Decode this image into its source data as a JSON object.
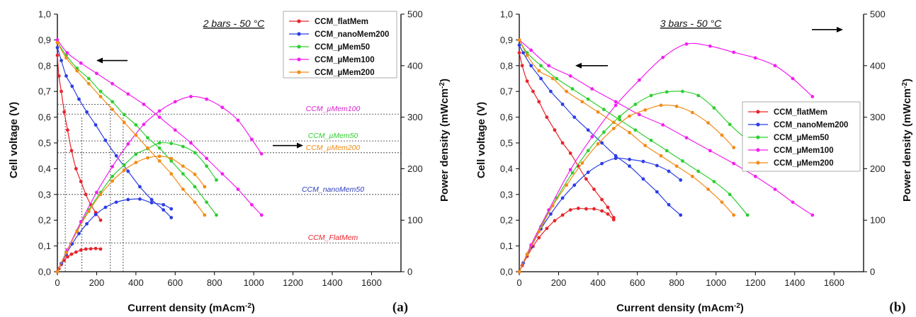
{
  "chart_data": [
    {
      "type": "line",
      "condition": "2 bars - 50 °C",
      "panel_label": "(a)",
      "xlabel": "Current density (mAcm",
      "xlabel_sup": "-2",
      "xlabel_close": ")",
      "ylabel_left": "Cell voltage (V)",
      "ylabel_right": "Power density (mWcm",
      "ylabel_right_sup": "-2",
      "ylabel_right_close": ")",
      "xlim": [
        0,
        1750
      ],
      "ylim_left": [
        0,
        1.0
      ],
      "ylim_right": [
        0,
        500
      ],
      "x_ticks": [
        0,
        200,
        400,
        600,
        800,
        1000,
        1200,
        1400,
        1600
      ],
      "y_left_ticks": [
        "0,0",
        "0,1",
        "0,2",
        "0,3",
        "0,4",
        "0,5",
        "0,6",
        "0,7",
        "0,8",
        "0,9",
        "1,0"
      ],
      "y_right_ticks": [
        0,
        100,
        200,
        300,
        400,
        500
      ],
      "legend_position": "top-right",
      "arrows": [
        {
          "direction": "left",
          "x": 230,
          "y": 0.82
        },
        {
          "direction": "right",
          "x": 1450,
          "y": 0.49
        }
      ],
      "series": [
        {
          "name": "CCM_flatMem",
          "color": "#e8242a",
          "polarization": {
            "x": [
              0,
              8,
              20,
              35,
              52,
              72,
              95,
              120,
              145,
              170,
              195,
              220
            ],
            "y": [
              0.84,
              0.76,
              0.7,
              0.62,
              0.55,
              0.47,
              0.4,
              0.35,
              0.3,
              0.26,
              0.23,
              0.2
            ]
          },
          "power": {
            "x": [
              0,
              8,
              20,
              35,
              52,
              72,
              95,
              120,
              145,
              170,
              195,
              220
            ],
            "y": [
              0,
              6,
              14,
              22,
              29,
              34,
              38,
              42,
              44,
              44.5,
              45,
              44
            ]
          }
        },
        {
          "name": "CCM_nanoMem200",
          "color": "#2b3de6",
          "polarization": {
            "x": [
              0,
              20,
              45,
              75,
              110,
              150,
              195,
              245,
              300,
              360,
              420,
              480,
              540,
              580
            ],
            "y": [
              0.87,
              0.82,
              0.76,
              0.72,
              0.67,
              0.62,
              0.57,
              0.51,
              0.45,
              0.39,
              0.33,
              0.28,
              0.24,
              0.21
            ]
          },
          "power": {
            "x": [
              0,
              20,
              45,
              75,
              110,
              150,
              195,
              245,
              300,
              360,
              420,
              480,
              540,
              580
            ],
            "y": [
              0,
              16,
              34,
              54,
              74,
              93,
              111,
              125,
              135,
              140,
              141,
              134,
              130,
              122
            ]
          }
        },
        {
          "name": "CCM_µMem50",
          "color": "#2fcf2f",
          "polarization": {
            "x": [
              0,
              45,
              100,
              160,
              220,
              280,
              340,
              400,
              460,
              520,
              580,
              640,
              700,
              760,
              810
            ],
            "y": [
              0.89,
              0.84,
              0.79,
              0.75,
              0.7,
              0.66,
              0.61,
              0.57,
              0.52,
              0.48,
              0.43,
              0.38,
              0.33,
              0.27,
              0.22
            ]
          },
          "power": {
            "x": [
              0,
              45,
              100,
              160,
              220,
              280,
              340,
              400,
              460,
              520,
              580,
              640,
              700,
              760,
              810
            ],
            "y": [
              0,
              38,
              79,
              120,
              154,
              185,
              207,
              228,
              239,
              250,
              249,
              243,
              231,
              205,
              178
            ]
          }
        },
        {
          "name": "CCM_µMem100",
          "color": "#f31ff0",
          "polarization": {
            "x": [
              0,
              50,
              120,
              200,
              280,
              360,
              440,
              520,
              600,
              680,
              760,
              840,
              920,
              990,
              1040
            ],
            "y": [
              0.9,
              0.85,
              0.81,
              0.77,
              0.73,
              0.69,
              0.65,
              0.6,
              0.55,
              0.5,
              0.44,
              0.38,
              0.32,
              0.26,
              0.22
            ]
          },
          "power": {
            "x": [
              0,
              50,
              120,
              200,
              280,
              360,
              440,
              520,
              600,
              680,
              760,
              840,
              920,
              990,
              1040
            ],
            "y": [
              0,
              42,
              97,
              154,
              204,
              248,
              286,
              312,
              330,
              340,
              335,
              319,
              294,
              257,
              229
            ]
          }
        },
        {
          "name": "CCM_µMem200",
          "color": "#f38b18",
          "polarization": {
            "x": [
              0,
              45,
              100,
              160,
              220,
              280,
              340,
              400,
              460,
              520,
              580,
              640,
              700,
              750
            ],
            "y": [
              0.89,
              0.83,
              0.78,
              0.73,
              0.68,
              0.63,
              0.58,
              0.53,
              0.48,
              0.43,
              0.38,
              0.32,
              0.27,
              0.22
            ]
          },
          "power": {
            "x": [
              0,
              45,
              100,
              160,
              220,
              280,
              340,
              400,
              460,
              520,
              580,
              640,
              700,
              750
            ],
            "y": [
              0,
              37,
              78,
              117,
              150,
              176,
              197,
              212,
              221,
              224,
              220,
              205,
              189,
              165
            ]
          }
        }
      ],
      "guide_lines": [
        {
          "type": "h",
          "y": 0.65,
          "x_from": 0,
          "x_to": 270
        },
        {
          "type": "v",
          "x": 40,
          "y_from": 0,
          "y_to": 0.65
        },
        {
          "type": "v",
          "x": 125,
          "y_from": 0,
          "y_to": 0.6
        },
        {
          "type": "v",
          "x": 270,
          "y_from": 0,
          "y_to": 0.65
        },
        {
          "type": "v",
          "x": 335,
          "y_from": 0,
          "y_to": 0.6
        }
      ],
      "power_reference_lines": [
        {
          "label": "CCM_µMem100",
          "power": 306,
          "color": "#d81fd0"
        },
        {
          "label": "CCM_µMem50",
          "power": 254,
          "color": "#2fcf2f"
        },
        {
          "label": "CCM_µMem200",
          "power": 231,
          "color": "#f08a18"
        },
        {
          "label": "CCM_nanoMem50",
          "power": 150,
          "color": "#2b3db8"
        },
        {
          "label": "CCM_FlatMem",
          "power": 56,
          "color": "#e8242a"
        }
      ]
    },
    {
      "type": "line",
      "condition": "3 bars - 50 °C",
      "panel_label": "(b)",
      "xlabel": "Current density (mAcm",
      "xlabel_sup": "-2",
      "xlabel_close": ")",
      "ylabel_left": "Cell voltage (V)",
      "ylabel_right": "Power density (mWcm",
      "ylabel_right_sup": "-2",
      "ylabel_right_close": ")",
      "xlim": [
        0,
        1750
      ],
      "ylim_left": [
        0,
        1.0
      ],
      "ylim_right": [
        0,
        500
      ],
      "x_ticks": [
        0,
        200,
        400,
        600,
        800,
        1000,
        1200,
        1400,
        1600
      ],
      "y_left_ticks": [
        "0,0",
        "0,1",
        "0,2",
        "0,3",
        "0,4",
        "0,5",
        "0,6",
        "0,7",
        "0,8",
        "0,9",
        "1,0"
      ],
      "y_right_ticks": [
        0,
        100,
        200,
        300,
        400,
        500
      ],
      "legend_position": "center-right",
      "arrows": [
        {
          "direction": "left",
          "x": 480,
          "y": 0.8
        },
        {
          "direction": "right",
          "x": 1600,
          "y": 0.94
        }
      ],
      "series": [
        {
          "name": "CCM_flatMem",
          "color": "#e8242a",
          "polarization": {
            "x": [
              0,
              15,
              40,
              70,
              100,
              140,
              180,
              220,
              260,
              300,
              340,
              380,
              420,
              450,
              480
            ],
            "y": [
              0.85,
              0.8,
              0.74,
              0.7,
              0.66,
              0.6,
              0.55,
              0.5,
              0.46,
              0.41,
              0.36,
              0.32,
              0.28,
              0.25,
              0.21
            ]
          },
          "power": {
            "x": [
              0,
              15,
              40,
              70,
              100,
              140,
              180,
              220,
              260,
              300,
              340,
              380,
              420,
              450,
              480
            ],
            "y": [
              0,
              12,
              30,
              49,
              66,
              84,
              99,
              110,
              120,
              123,
              122,
              122,
              118,
              112,
              101
            ]
          }
        },
        {
          "name": "CCM_nanoMem200",
          "color": "#2b3de6",
          "polarization": {
            "x": [
              0,
              20,
              60,
              110,
              160,
              220,
              280,
              350,
              420,
              490,
              560,
              630,
              700,
              760,
              820
            ],
            "y": [
              0.88,
              0.85,
              0.8,
              0.75,
              0.7,
              0.65,
              0.6,
              0.55,
              0.5,
              0.45,
              0.41,
              0.36,
              0.31,
              0.26,
              0.22
            ]
          },
          "power": {
            "x": [
              0,
              20,
              60,
              110,
              160,
              220,
              280,
              350,
              420,
              490,
              560,
              630,
              700,
              760,
              820
            ],
            "y": [
              0,
              17,
              48,
              83,
              112,
              143,
              168,
              193,
              210,
              220,
              218,
              214,
              206,
              195,
              178
            ]
          }
        },
        {
          "name": "CCM_µMem50",
          "color": "#2fcf2f",
          "polarization": {
            "x": [
              0,
              40,
              110,
              190,
              270,
              350,
              430,
              510,
              590,
              670,
              750,
              830,
              910,
              990,
              1070,
              1160
            ],
            "y": [
              0.9,
              0.85,
              0.8,
              0.75,
              0.71,
              0.67,
              0.63,
              0.59,
              0.55,
              0.51,
              0.47,
              0.43,
              0.39,
              0.35,
              0.3,
              0.22
            ]
          },
          "power": {
            "x": [
              0,
              40,
              110,
              190,
              270,
              350,
              430,
              510,
              590,
              670,
              750,
              830,
              910,
              990,
              1070,
              1160
            ],
            "y": [
              0,
              34,
              88,
              143,
              192,
              235,
              271,
              301,
              325,
              342,
              349,
              350,
              342,
              318,
              286,
              255
            ]
          }
        },
        {
          "name": "CCM_µMem100",
          "color": "#f31ff0",
          "polarization": {
            "x": [
              0,
              60,
              150,
              260,
              370,
              490,
              610,
              730,
              850,
              970,
              1090,
              1200,
              1300,
              1390,
              1490
            ],
            "y": [
              0.9,
              0.86,
              0.8,
              0.76,
              0.71,
              0.66,
              0.61,
              0.57,
              0.52,
              0.47,
              0.42,
              0.37,
              0.32,
              0.27,
              0.22
            ]
          },
          "power": {
            "x": [
              0,
              60,
              150,
              260,
              370,
              490,
              610,
              730,
              850,
              970,
              1090,
              1200,
              1300,
              1390,
              1490
            ],
            "y": [
              0,
              52,
              120,
              198,
              262,
              323,
              372,
              416,
              442,
              438,
              426,
              415,
              400,
              375,
              340
            ]
          }
        },
        {
          "name": "CCM_µMem200",
          "color": "#f38b18",
          "polarization": {
            "x": [
              0,
              40,
              100,
              170,
              240,
              320,
              400,
              480,
              560,
              640,
              720,
              800,
              880,
              960,
              1030,
              1090
            ],
            "y": [
              0.9,
              0.84,
              0.78,
              0.75,
              0.7,
              0.66,
              0.62,
              0.58,
              0.54,
              0.49,
              0.45,
              0.41,
              0.37,
              0.32,
              0.27,
              0.22
            ]
          },
          "power": {
            "x": [
              0,
              40,
              100,
              170,
              240,
              320,
              400,
              480,
              560,
              640,
              720,
              800,
              880,
              960,
              1030,
              1090
            ],
            "y": [
              0,
              34,
              78,
              128,
              168,
              211,
              248,
              278,
              302,
              314,
              323,
              321,
              309,
              289,
              265,
              241
            ]
          }
        }
      ]
    }
  ]
}
